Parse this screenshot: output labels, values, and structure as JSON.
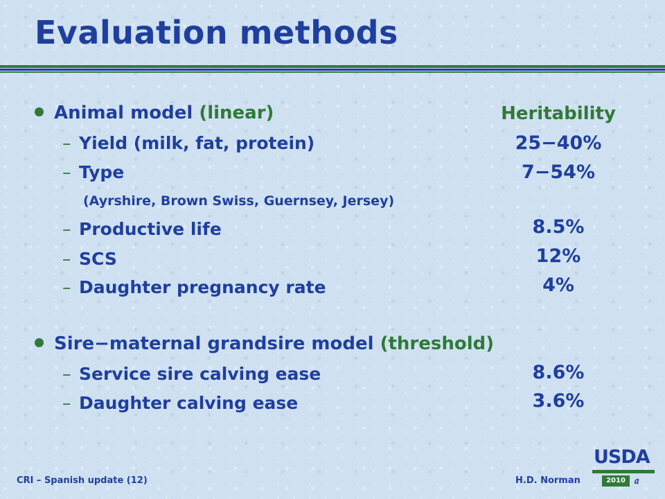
{
  "title": "Evaluation methods",
  "section1": {
    "label": "Animal model",
    "qualifier": "(linear)",
    "items": [
      "Yield (milk, fat, protein)",
      "Type",
      "Productive life",
      "SCS",
      "Daughter pregnancy rate"
    ],
    "type_note": "(Ayrshire, Brown Swiss, Guernsey, Jersey)"
  },
  "section2": {
    "label": "Sire−maternal grandsire model",
    "qualifier": "(threshold)",
    "items": [
      "Service sire calving ease",
      "Daughter calving ease"
    ]
  },
  "heritability": {
    "heading": "Heritability",
    "values": [
      "25−40%",
      "7−54%",
      "8.5%",
      "12%",
      "4%",
      "8.6%",
      "3.6%"
    ]
  },
  "list_marker": "–",
  "footer": {
    "left": "CRI – Spanish update (12)",
    "right": "H.D. Norman"
  },
  "logo": {
    "name": "USDA",
    "year": "2010",
    "icon": "aipl-logo"
  },
  "colors": {
    "title": "#1f3f9e",
    "accent": "#2f7a37",
    "background": "#cfe0f1"
  }
}
